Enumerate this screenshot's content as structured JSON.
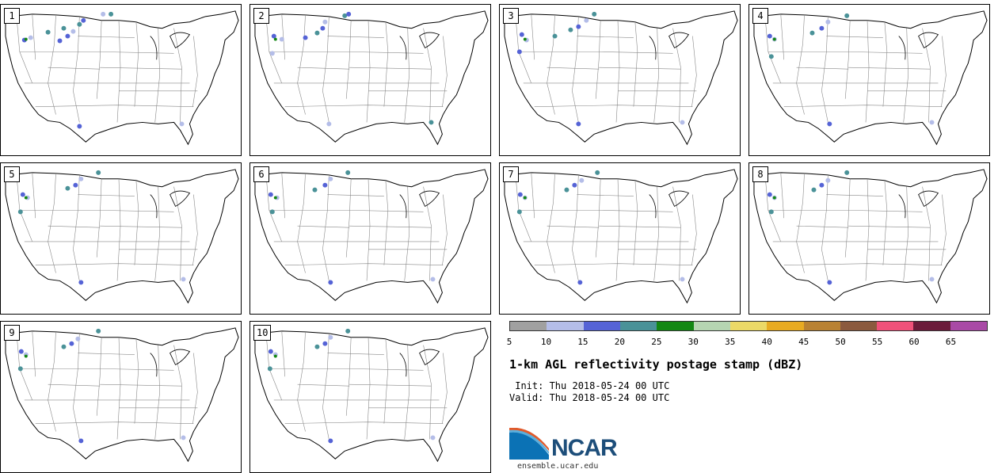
{
  "panels": [
    {
      "label": "1"
    },
    {
      "label": "2"
    },
    {
      "label": "3"
    },
    {
      "label": "4"
    },
    {
      "label": "5"
    },
    {
      "label": "6"
    },
    {
      "label": "7"
    },
    {
      "label": "8"
    },
    {
      "label": "9"
    },
    {
      "label": "10"
    }
  ],
  "colorbar": {
    "colors": [
      "#a0a0a0",
      "#b4bde8",
      "#5563d6",
      "#4a9298",
      "#138713",
      "#b6d5b2",
      "#ecd967",
      "#e8ab22",
      "#b98233",
      "#8b5a3e",
      "#f0517a",
      "#6b1b3a",
      "#a94aa6"
    ],
    "tick_labels": [
      "5",
      "10",
      "15",
      "20",
      "25",
      "30",
      "35",
      "40",
      "45",
      "50",
      "55",
      "60",
      "65"
    ]
  },
  "title": "1-km AGL reflectivity postage stamp (dBZ)",
  "init": " Init: Thu 2018-05-24 00 UTC",
  "valid": "Valid: Thu 2018-05-24 00 UTC",
  "logo": {
    "text": "NCAR",
    "url": "ensemble.ucar.edu"
  }
}
